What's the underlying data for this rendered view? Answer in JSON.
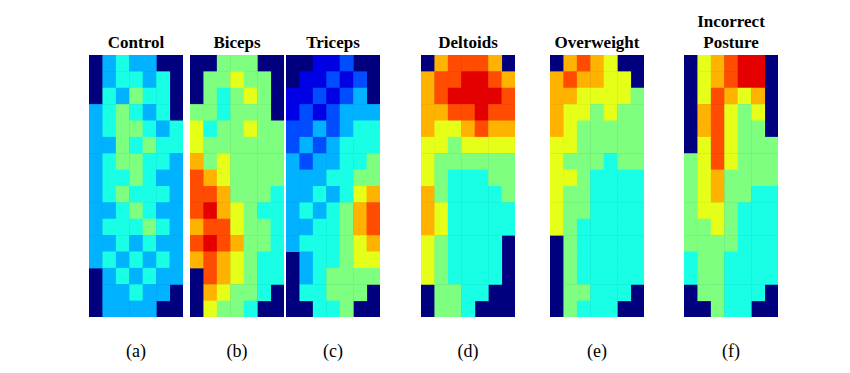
{
  "chart_data": [
    {
      "type": "heatmap",
      "title": "Control",
      "xlabel": "(a)",
      "zlim": [
        0,
        10
      ],
      "tick_labels": false,
      "z": [
        [
          null,
          3,
          4,
          3,
          3,
          null,
          null
        ],
        [
          null,
          3,
          4,
          4,
          3,
          4,
          null
        ],
        [
          null,
          4,
          3,
          5,
          4,
          4,
          null
        ],
        [
          3,
          4,
          5,
          4,
          3,
          4,
          null
        ],
        [
          3,
          4,
          5,
          5,
          4,
          3,
          4
        ],
        [
          3,
          3,
          5,
          4,
          5,
          4,
          4
        ],
        [
          3,
          4,
          5,
          5,
          4,
          4,
          3
        ],
        [
          3,
          4,
          4,
          5,
          4,
          3,
          3
        ],
        [
          3,
          4,
          5,
          4,
          4,
          4,
          3
        ],
        [
          3,
          3,
          4,
          5,
          4,
          3,
          3
        ],
        [
          3,
          4,
          4,
          4,
          5,
          4,
          3
        ],
        [
          3,
          3,
          4,
          3,
          4,
          3,
          3
        ],
        [
          3,
          4,
          3,
          4,
          3,
          4,
          3
        ],
        [
          null,
          3,
          4,
          3,
          4,
          3,
          3
        ],
        [
          null,
          3,
          3,
          4,
          3,
          3,
          null
        ],
        [
          null,
          3,
          3,
          3,
          3,
          null,
          null
        ]
      ]
    },
    {
      "type": "heatmap",
      "title": "Biceps",
      "xlabel": "(b)",
      "zlim": [
        0,
        10
      ],
      "tick_labels": false,
      "z": [
        [
          null,
          null,
          5,
          5,
          5,
          null,
          null
        ],
        [
          null,
          5,
          5,
          6,
          5,
          5,
          null
        ],
        [
          null,
          5,
          4,
          5,
          6,
          5,
          null
        ],
        [
          5,
          5,
          4,
          5,
          5,
          5,
          null
        ],
        [
          6,
          4,
          5,
          5,
          6,
          5,
          5
        ],
        [
          6,
          5,
          5,
          5,
          5,
          5,
          5
        ],
        [
          7,
          5,
          6,
          5,
          5,
          5,
          5
        ],
        [
          8,
          7,
          6,
          5,
          5,
          5,
          5
        ],
        [
          8,
          8,
          7,
          5,
          5,
          5,
          4
        ],
        [
          8,
          9,
          7,
          6,
          5,
          4,
          4
        ],
        [
          7,
          8,
          8,
          6,
          5,
          5,
          4
        ],
        [
          8,
          9,
          8,
          7,
          5,
          5,
          4
        ],
        [
          7,
          8,
          7,
          6,
          5,
          4,
          4
        ],
        [
          null,
          8,
          7,
          6,
          5,
          4,
          4
        ],
        [
          null,
          7,
          6,
          5,
          5,
          4,
          null
        ],
        [
          null,
          6,
          5,
          5,
          4,
          null,
          null
        ]
      ]
    },
    {
      "type": "heatmap",
      "title": "Triceps",
      "xlabel": "(c)",
      "zlim": [
        0,
        10
      ],
      "tick_labels": false,
      "z": [
        [
          null,
          null,
          1,
          1,
          2,
          null,
          null
        ],
        [
          null,
          1,
          1,
          2,
          1,
          2,
          null
        ],
        [
          1,
          1,
          2,
          1,
          2,
          3,
          null
        ],
        [
          1,
          2,
          1,
          2,
          3,
          3,
          3
        ],
        [
          2,
          2,
          3,
          2,
          3,
          4,
          4
        ],
        [
          2,
          3,
          2,
          3,
          4,
          4,
          4
        ],
        [
          3,
          2,
          3,
          3,
          4,
          4,
          5
        ],
        [
          3,
          3,
          3,
          4,
          4,
          5,
          5
        ],
        [
          3,
          3,
          4,
          3,
          4,
          6,
          7
        ],
        [
          3,
          4,
          3,
          4,
          5,
          7,
          8
        ],
        [
          3,
          3,
          4,
          4,
          5,
          7,
          8
        ],
        [
          3,
          4,
          4,
          4,
          5,
          6,
          7
        ],
        [
          null,
          3,
          4,
          4,
          5,
          6,
          6
        ],
        [
          null,
          3,
          4,
          5,
          5,
          5,
          5
        ],
        [
          null,
          4,
          4,
          5,
          5,
          5,
          null
        ],
        [
          null,
          null,
          4,
          4,
          5,
          null,
          null
        ]
      ]
    },
    {
      "type": "heatmap",
      "title": "Deltoids",
      "xlabel": "(d)",
      "zlim": [
        0,
        10
      ],
      "tick_labels": false,
      "z": [
        [
          null,
          7,
          8,
          8,
          8,
          7,
          null
        ],
        [
          7,
          8,
          8,
          9,
          9,
          8,
          7
        ],
        [
          7,
          8,
          9,
          9,
          9,
          9,
          8
        ],
        [
          7,
          7,
          8,
          8,
          9,
          8,
          8
        ],
        [
          7,
          6,
          6,
          7,
          8,
          7,
          7
        ],
        [
          6,
          6,
          5,
          6,
          6,
          6,
          6
        ],
        [
          6,
          5,
          5,
          5,
          5,
          5,
          5
        ],
        [
          6,
          5,
          4,
          4,
          4,
          5,
          5
        ],
        [
          7,
          5,
          4,
          4,
          4,
          4,
          5
        ],
        [
          7,
          6,
          4,
          4,
          4,
          4,
          4
        ],
        [
          7,
          6,
          4,
          4,
          4,
          4,
          4
        ],
        [
          6,
          5,
          4,
          4,
          4,
          4,
          null
        ],
        [
          6,
          5,
          4,
          4,
          4,
          4,
          null
        ],
        [
          6,
          5,
          4,
          4,
          4,
          4,
          null
        ],
        [
          null,
          5,
          5,
          4,
          4,
          null,
          null
        ],
        [
          null,
          5,
          5,
          4,
          null,
          null,
          null
        ]
      ]
    },
    {
      "type": "heatmap",
      "title": "Overweight",
      "xlabel": "(e)",
      "zlim": [
        0,
        10
      ],
      "tick_labels": false,
      "z": [
        [
          null,
          7,
          8,
          7,
          6,
          null,
          null
        ],
        [
          7,
          8,
          7,
          7,
          6,
          6,
          null
        ],
        [
          7,
          7,
          6,
          6,
          6,
          6,
          5
        ],
        [
          7,
          6,
          6,
          5,
          6,
          5,
          5
        ],
        [
          7,
          6,
          5,
          5,
          5,
          5,
          5
        ],
        [
          6,
          6,
          5,
          5,
          5,
          5,
          5
        ],
        [
          6,
          5,
          5,
          5,
          4,
          5,
          5
        ],
        [
          6,
          6,
          5,
          4,
          4,
          4,
          4
        ],
        [
          6,
          5,
          5,
          4,
          4,
          4,
          4
        ],
        [
          6,
          5,
          5,
          4,
          4,
          4,
          4
        ],
        [
          6,
          5,
          4,
          4,
          4,
          4,
          4
        ],
        [
          null,
          5,
          4,
          4,
          4,
          4,
          4
        ],
        [
          null,
          5,
          4,
          4,
          4,
          4,
          4
        ],
        [
          null,
          5,
          4,
          4,
          4,
          4,
          4
        ],
        [
          null,
          5,
          5,
          4,
          4,
          4,
          null
        ],
        [
          null,
          5,
          4,
          4,
          4,
          null,
          null
        ]
      ]
    },
    {
      "type": "heatmap",
      "title": "Incorrect Posture",
      "xlabel": "(f)",
      "zlim": [
        0,
        10
      ],
      "tick_labels": false,
      "z": [
        [
          null,
          6,
          7,
          8,
          9,
          9,
          null
        ],
        [
          null,
          6,
          7,
          8,
          9,
          9,
          null
        ],
        [
          null,
          6,
          8,
          7,
          6,
          7,
          null
        ],
        [
          null,
          7,
          8,
          6,
          5,
          6,
          null
        ],
        [
          null,
          7,
          8,
          6,
          5,
          5,
          null
        ],
        [
          null,
          6,
          8,
          6,
          5,
          5,
          5
        ],
        [
          5,
          6,
          8,
          6,
          5,
          5,
          5
        ],
        [
          5,
          6,
          7,
          5,
          5,
          5,
          5
        ],
        [
          5,
          6,
          7,
          5,
          5,
          4,
          4
        ],
        [
          5,
          6,
          6,
          5,
          4,
          4,
          4
        ],
        [
          5,
          5,
          6,
          5,
          4,
          4,
          4
        ],
        [
          5,
          5,
          5,
          5,
          4,
          4,
          4
        ],
        [
          4,
          5,
          5,
          4,
          4,
          4,
          4
        ],
        [
          4,
          5,
          5,
          4,
          4,
          4,
          4
        ],
        [
          null,
          5,
          5,
          4,
          4,
          4,
          null
        ],
        [
          null,
          null,
          5,
          4,
          4,
          null,
          null
        ]
      ]
    }
  ]
}
